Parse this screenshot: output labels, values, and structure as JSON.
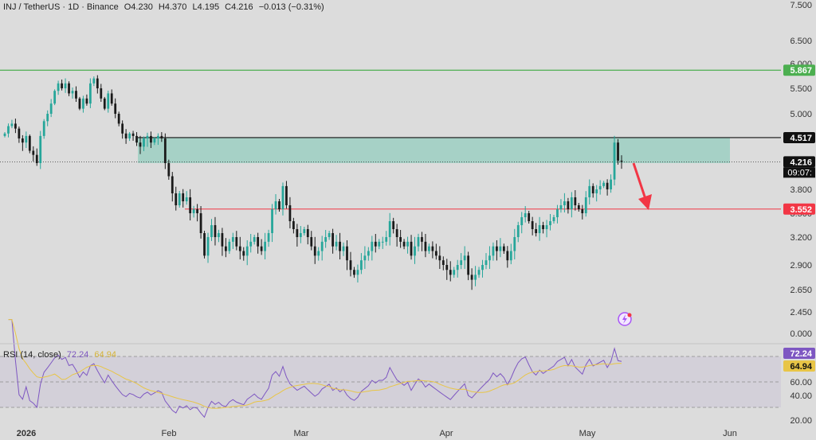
{
  "header": {
    "symbol": "INJ / TetherUS · 1D · Binance",
    "open": "O4.230",
    "high": "H4.370",
    "low": "L4.195",
    "close": "C4.216",
    "change": "−0.013 (−0.31%)"
  },
  "rsi": {
    "label": "RSI (14, close)",
    "value": "72.24",
    "ma_value": "64.94"
  },
  "price_axis": {
    "ticks": [
      "7.500",
      "6.500",
      "6.000",
      "5.500",
      "5.000",
      "4.500",
      "4.200",
      "3.800",
      "3.500",
      "3.200",
      "2.900",
      "2.650",
      "2.450",
      "0.000"
    ]
  },
  "rsi_axis": {
    "ticks": [
      "60.00",
      "40.00",
      "20.00"
    ]
  },
  "time_axis": {
    "labels": [
      "2026",
      "Feb",
      "Mar",
      "Apr",
      "May",
      "Jun"
    ]
  },
  "price_tags": {
    "green_line": "5.867",
    "black_line": "4.517",
    "current": "4.216",
    "countdown": "09:07:",
    "red_line": "3.552",
    "rsi_value": "72.24",
    "rsi_ma": "64.94"
  },
  "colors": {
    "up": "#26a69a",
    "down": "#1a1a1a",
    "green_line": "#4caf50",
    "red_line": "#f23645",
    "zone": "#9ccfc2",
    "rsi": "#7e57c2",
    "rsi_ma": "#e8c547",
    "background": "#dcdcdc"
  },
  "chart_data": {
    "type": "candlestick",
    "symbol": "INJ/USDT",
    "interval": "1D",
    "horizontal_levels": [
      5.867,
      4.517,
      3.552
    ],
    "resistance_zone": [
      4.2,
      4.517
    ],
    "closes": [
      4.6,
      4.75,
      4.8,
      4.7,
      4.5,
      4.45,
      4.55,
      4.35,
      4.3,
      4.2,
      4.55,
      4.85,
      5.0,
      5.2,
      5.45,
      5.6,
      5.5,
      5.6,
      5.4,
      5.45,
      5.3,
      5.1,
      5.3,
      5.2,
      5.6,
      5.7,
      5.5,
      5.3,
      5.1,
      5.4,
      5.2,
      5.0,
      4.8,
      4.6,
      4.5,
      4.6,
      4.55,
      4.45,
      4.4,
      4.5,
      4.55,
      4.45,
      4.5,
      4.55,
      4.5,
      4.2,
      4.0,
      3.75,
      3.6,
      3.75,
      3.65,
      3.7,
      3.5,
      3.55,
      3.5,
      3.25,
      3.0,
      3.2,
      3.35,
      3.2,
      3.25,
      3.1,
      3.05,
      3.15,
      3.2,
      3.1,
      3.05,
      3.0,
      3.1,
      3.15,
      3.2,
      3.1,
      3.05,
      3.15,
      3.25,
      3.55,
      3.65,
      3.55,
      3.85,
      3.6,
      3.4,
      3.3,
      3.2,
      3.25,
      3.3,
      3.2,
      3.1,
      3.0,
      3.05,
      3.15,
      3.2,
      3.25,
      3.1,
      3.15,
      3.05,
      3.1,
      2.95,
      2.85,
      2.8,
      2.85,
      2.95,
      3.0,
      3.05,
      3.15,
      3.1,
      3.15,
      3.15,
      3.2,
      3.4,
      3.3,
      3.2,
      3.15,
      3.1,
      3.15,
      3.0,
      3.1,
      3.2,
      3.15,
      3.05,
      3.1,
      3.05,
      3.0,
      2.95,
      2.9,
      2.85,
      2.8,
      2.85,
      2.9,
      2.95,
      3.0,
      2.8,
      2.75,
      2.8,
      2.85,
      2.9,
      2.95,
      3.0,
      3.1,
      3.05,
      3.1,
      3.05,
      2.95,
      3.05,
      3.2,
      3.35,
      3.45,
      3.5,
      3.4,
      3.3,
      3.25,
      3.35,
      3.3,
      3.35,
      3.4,
      3.45,
      3.55,
      3.6,
      3.65,
      3.55,
      3.7,
      3.6,
      3.55,
      3.5,
      3.7,
      3.85,
      3.75,
      3.8,
      3.85,
      3.9,
      3.8,
      3.95,
      4.45,
      4.23,
      4.216
    ]
  }
}
